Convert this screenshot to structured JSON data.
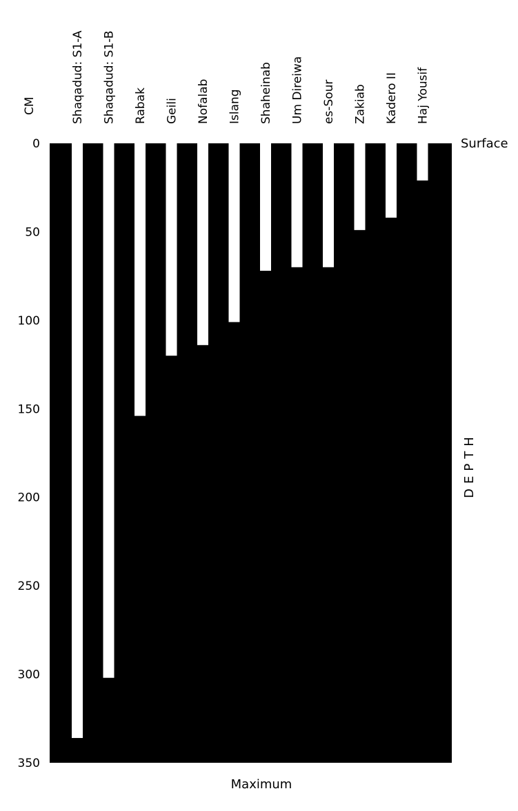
{
  "chart_data": {
    "type": "bar",
    "orientation": "vertical-down",
    "unit_label": "CM",
    "categories": [
      "Shaqadud: S1-A",
      "Shaqadud: S1-B",
      "Rabak",
      "Geili",
      "Nofalab",
      "Islang",
      "Shaheinab",
      "Um Direiwa",
      "es-Sour",
      "Zakiab",
      "Kadero II",
      "Haj Yousif"
    ],
    "values": [
      336,
      302,
      154,
      120,
      114,
      101,
      72,
      70,
      70,
      49,
      42,
      21
    ],
    "ylim": [
      0,
      350
    ],
    "yticks": [
      "0",
      "50",
      "100",
      "150",
      "200",
      "250",
      "300",
      "350"
    ],
    "top_label": "Surface",
    "side_label": "DEPTH",
    "xlabel": "Maximum",
    "colors": {
      "background": "#000000",
      "bar": "#ffffff"
    },
    "grid": false
  }
}
